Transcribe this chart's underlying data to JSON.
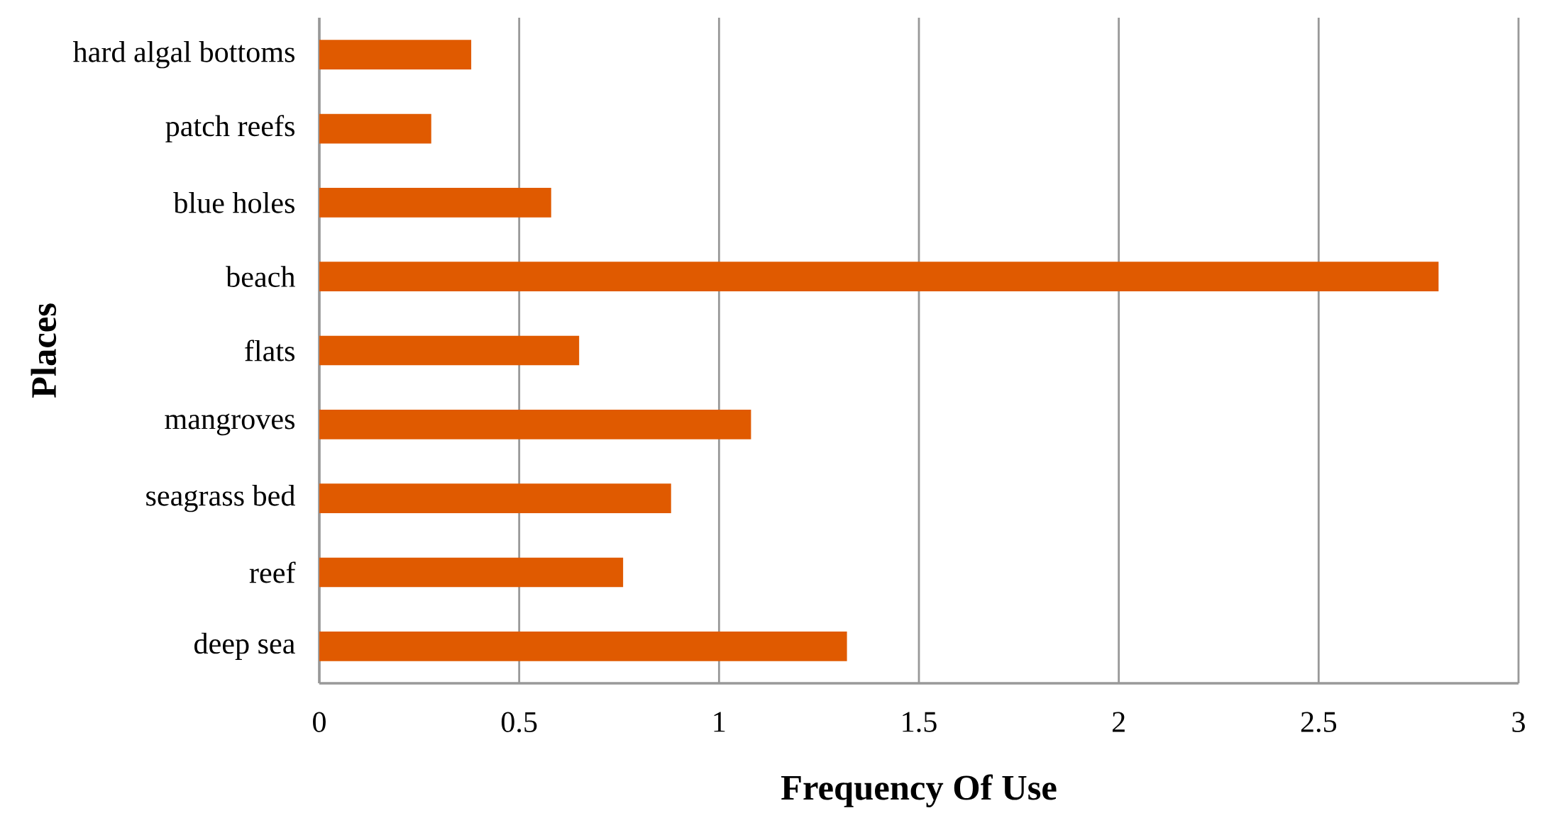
{
  "chart_data": {
    "type": "bar",
    "orientation": "horizontal",
    "xlabel": "Frequency Of Use",
    "ylabel": "Places",
    "categories": [
      "hard algal bottoms",
      "patch reefs",
      "blue holes",
      "beach",
      "flats",
      "mangroves",
      "seagrass bed",
      "reef",
      "deep sea"
    ],
    "values": [
      0.38,
      0.28,
      0.58,
      2.8,
      0.65,
      1.08,
      0.88,
      0.76,
      1.32
    ],
    "color": "#e05a00",
    "xlim": [
      0,
      3
    ],
    "xticks": [
      0,
      0.5,
      1,
      1.5,
      2,
      2.5,
      3
    ],
    "grid": "x"
  }
}
